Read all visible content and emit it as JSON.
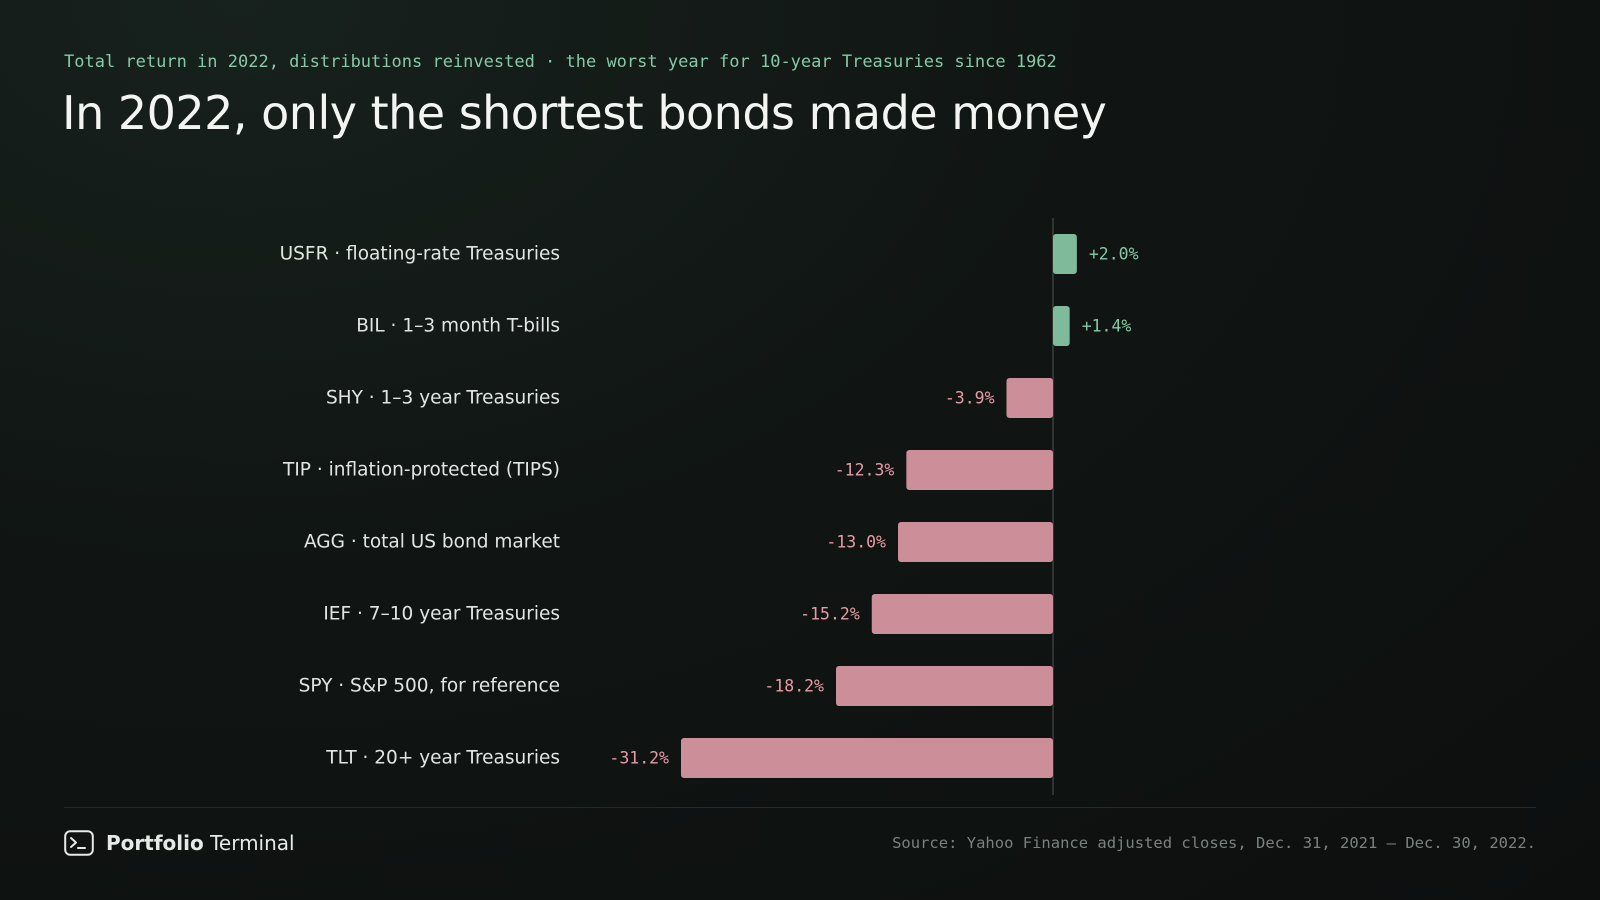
{
  "header": {
    "subtitle": "Total return in 2022, distributions reinvested · the worst year for 10-year Treasuries since 1962",
    "title": "In 2022, only the shortest bonds made money"
  },
  "chart_data": {
    "type": "bar",
    "orientation": "horizontal",
    "title": "In 2022, only the shortest bonds made money",
    "subtitle": "Total return in 2022, distributions reinvested · the worst year for 10-year Treasuries since 1962",
    "categories": [
      "USFR · floating-rate Treasuries",
      "BIL · 1–3 month T-bills",
      "SHY · 1–3 year Treasuries",
      "TIP · inflation-protected (TIPS)",
      "AGG · total US bond market",
      "IEF · 7–10 year Treasuries",
      "SPY · S&P 500, for reference",
      "TLT · 20+ year Treasuries"
    ],
    "values": [
      2.0,
      1.4,
      -3.9,
      -12.3,
      -13.0,
      -15.2,
      -18.2,
      -31.2
    ],
    "value_labels": [
      "+2.0%",
      "+1.4%",
      "-3.9%",
      "-12.3%",
      "-13.0%",
      "-15.2%",
      "-18.2%",
      "-31.2%"
    ],
    "xlim": [
      -31.2,
      2.0
    ],
    "grid": false,
    "zero_line": true,
    "colors": {
      "positive": "#7fba9b",
      "negative": "#cc8f9a",
      "positive_text": "#86c9a8",
      "negative_text": "#e79aa7",
      "zero_line": "#3a403d"
    }
  },
  "footer": {
    "brand_bold": "Portfolio",
    "brand_rest": "Terminal",
    "brand_icon": "terminal-icon",
    "source": "Source: Yahoo Finance adjusted closes, Dec. 31, 2021 – Dec. 30, 2022."
  }
}
